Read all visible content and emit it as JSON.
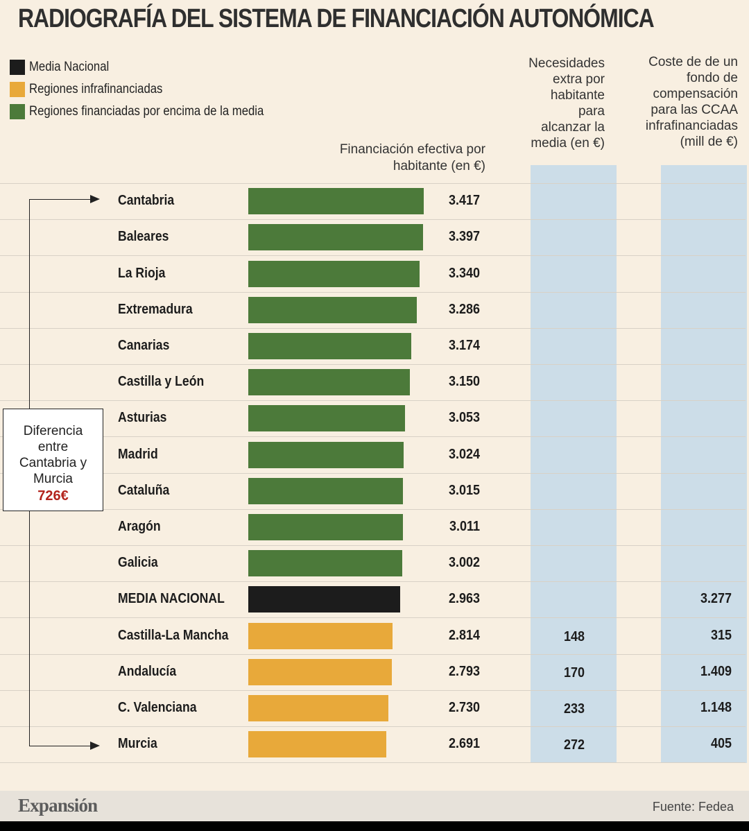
{
  "title": "RADIOGRAFÍA DEL SISTEMA DE FINANCIACIÓN AUTONÓMICA",
  "legend": [
    {
      "label": "Media Nacional",
      "color": "#1c1c1c"
    },
    {
      "label": "Regiones infrafinanciadas",
      "color": "#e8a93a"
    },
    {
      "label": "Regiones financiadas por encima de la media",
      "color": "#4c7a3a"
    }
  ],
  "headers": {
    "value_column": [
      "Financiación efectiva por",
      "habitante (en €)"
    ],
    "needs_column": [
      "Necesidades",
      "extra por",
      "habitante",
      "para",
      "alcanzar la",
      "media (en €)"
    ],
    "cost_column": [
      "Coste de de un",
      "fondo de",
      "compensación",
      "para las CCAA",
      "infrafinanciadas",
      "(mill de €)"
    ]
  },
  "annotation": {
    "lines": [
      "Diferencia",
      "entre",
      "Cantabria y",
      "Murcia"
    ],
    "amount": "726€"
  },
  "chart_data": {
    "type": "bar",
    "orientation": "horizontal",
    "title": "RADIOGRAFÍA DEL SISTEMA DE FINANCIACIÓN AUTONÓMICA",
    "value_label": "Financiación efectiva por habitante (en €)",
    "xlim": [
      0,
      3417
    ],
    "grid": true,
    "legend_position": "top-left",
    "rows": [
      {
        "name": "Cantabria",
        "value": 3417,
        "value_label": "3.417",
        "group": "above",
        "needs": "",
        "cost": ""
      },
      {
        "name": "Baleares",
        "value": 3397,
        "value_label": "3.397",
        "group": "above",
        "needs": "",
        "cost": ""
      },
      {
        "name": "La Rioja",
        "value": 3340,
        "value_label": "3.340",
        "group": "above",
        "needs": "",
        "cost": ""
      },
      {
        "name": "Extremadura",
        "value": 3286,
        "value_label": "3.286",
        "group": "above",
        "needs": "",
        "cost": ""
      },
      {
        "name": "Canarias",
        "value": 3174,
        "value_label": "3.174",
        "group": "above",
        "needs": "",
        "cost": ""
      },
      {
        "name": "Castilla y León",
        "value": 3150,
        "value_label": "3.150",
        "group": "above",
        "needs": "",
        "cost": ""
      },
      {
        "name": "Asturias",
        "value": 3053,
        "value_label": "3.053",
        "group": "above",
        "needs": "",
        "cost": ""
      },
      {
        "name": "Madrid",
        "value": 3024,
        "value_label": "3.024",
        "group": "above",
        "needs": "",
        "cost": ""
      },
      {
        "name": "Cataluña",
        "value": 3015,
        "value_label": "3.015",
        "group": "above",
        "needs": "",
        "cost": ""
      },
      {
        "name": "Aragón",
        "value": 3011,
        "value_label": "3.011",
        "group": "above",
        "needs": "",
        "cost": ""
      },
      {
        "name": "Galicia",
        "value": 3002,
        "value_label": "3.002",
        "group": "above",
        "needs": "",
        "cost": ""
      },
      {
        "name": "MEDIA NACIONAL",
        "value": 2963,
        "value_label": "2.963",
        "group": "media",
        "needs": "",
        "cost": "3.277"
      },
      {
        "name": "Castilla-La Mancha",
        "value": 2814,
        "value_label": "2.814",
        "group": "under",
        "needs": "148",
        "cost": "315"
      },
      {
        "name": "Andalucía",
        "value": 2793,
        "value_label": "2.793",
        "group": "under",
        "needs": "170",
        "cost": "1.409"
      },
      {
        "name": "C. Valenciana",
        "value": 2730,
        "value_label": "2.730",
        "group": "under",
        "needs": "233",
        "cost": "1.148"
      },
      {
        "name": "Murcia",
        "value": 2691,
        "value_label": "2.691",
        "group": "under",
        "needs": "272",
        "cost": "405"
      }
    ]
  },
  "colors": {
    "above": "#4c7a3a",
    "media": "#1c1c1c",
    "under": "#e8a93a",
    "background": "#f8efe1",
    "column_band": "#ccdde8",
    "accent_red": "#b3241d"
  },
  "footer": {
    "brand": "Expansión",
    "source": "Fuente: Fedea"
  }
}
